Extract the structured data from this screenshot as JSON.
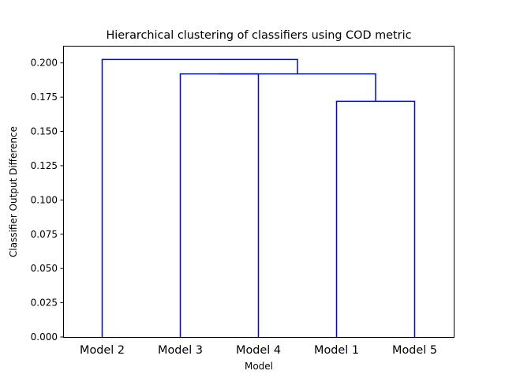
{
  "chart_data": {
    "type": "dendrogram",
    "title": "Hierarchical clustering of classifiers using COD metric",
    "xlabel": "Model",
    "ylabel": "Classifier Output Difference",
    "ylim": [
      0,
      0.2125
    ],
    "yticks": [
      0.0,
      0.025,
      0.05,
      0.075,
      0.1,
      0.125,
      0.15,
      0.175,
      0.2
    ],
    "ytick_labels": [
      "0.000",
      "0.025",
      "0.050",
      "0.075",
      "0.100",
      "0.125",
      "0.150",
      "0.175",
      "0.200"
    ],
    "leaves": [
      "Model 2",
      "Model 3",
      "Model 4",
      "Model 1",
      "Model 5"
    ],
    "merges": [
      {
        "left": "Model 1",
        "right": "Model 5",
        "height": 0.172
      },
      {
        "left": "Model 3",
        "right": "Model 4",
        "height": 0.192
      },
      {
        "left": "Model 3 + Model 4",
        "right": "Model 1 + Model 5",
        "height": 0.192
      },
      {
        "left": "Model 2",
        "right": "Model 3 + Model 4 + Model 1 + Model 5",
        "height": 0.2025
      }
    ],
    "link_color": "#0000ff",
    "grid": false
  }
}
